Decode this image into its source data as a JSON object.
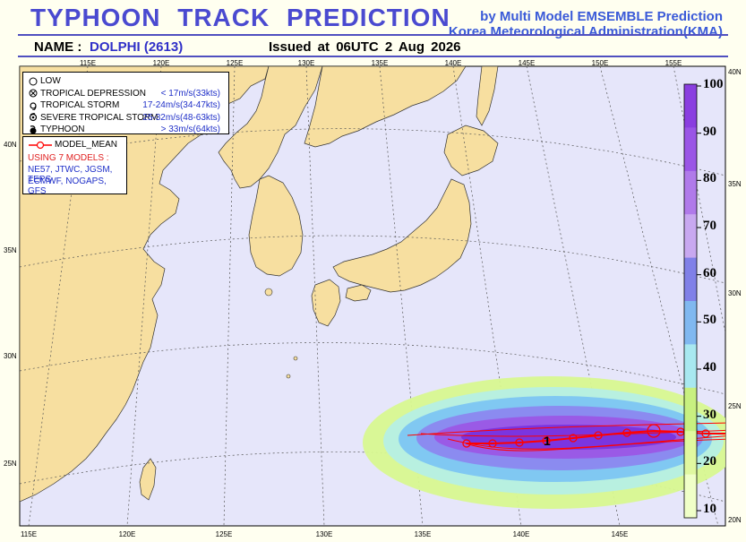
{
  "header": {
    "title": "TYPHOON TRACK PREDICTION",
    "by_line": "by Multi Model EMSEMBLE Prediction",
    "agency": "Korea Meteorological Administration(KMA)",
    "name_label": "NAME :",
    "name_value": "DOLPHI (2613)",
    "issued": "Issued at 06UTC 2 Aug 2026"
  },
  "map": {
    "top_lon_labels": [
      "115E",
      "120E",
      "125E",
      "130E",
      "135E",
      "140E",
      "145E",
      "150E",
      "155E"
    ],
    "bottom_lon_labels": [
      "115E",
      "120E",
      "125E",
      "130E",
      "135E",
      "140E",
      "145E"
    ],
    "left_lat_labels": [
      "40N",
      "35N",
      "30N",
      "25N"
    ],
    "right_lat_labels": [
      "40N",
      "35N",
      "30N",
      "25N",
      "20N"
    ],
    "colors": {
      "land": "#f7dfa0",
      "sea": "#e6e6fa",
      "track": "#ff0000",
      "frame": "#5050c0"
    }
  },
  "legend": {
    "items": [
      {
        "icon": "low-icon",
        "label": "LOW",
        "value": ""
      },
      {
        "icon": "tropical-depression-icon",
        "label": "TROPICAL DEPRESSION",
        "value": "< 17m/s(33kts)"
      },
      {
        "icon": "tropical-storm-icon",
        "label": "TROPICAL STORM",
        "value": "17-24m/s(34-47kts)"
      },
      {
        "icon": "severe-tropical-storm-icon",
        "label": "SEVERE TROPICAL STORM",
        "value": "25-32m/s(48-63kts)"
      },
      {
        "icon": "typhoon-icon",
        "label": "TYPHOON",
        "value": "> 33m/s(64kts)"
      }
    ]
  },
  "models": {
    "mean_label": "MODEL_MEAN",
    "using": "USING 7 MODELS :",
    "list_line1": "NE57, JTWC, JGSM, TEPS",
    "list_line2": "ECMWF, NOGAPS, GFS"
  },
  "colorbar": {
    "labels": [
      "100",
      "90",
      "80",
      "70",
      "60",
      "50",
      "40",
      "30",
      "20",
      "10"
    ],
    "colors": [
      "#8a3ee0",
      "#9a55e6",
      "#b07aea",
      "#c8a8f0",
      "#8080e8",
      "#80b8f0",
      "#a8e8f0",
      "#c8f080",
      "#e0f8a0",
      "#f0ffc8"
    ]
  },
  "storm": {
    "current_marker": "1"
  }
}
